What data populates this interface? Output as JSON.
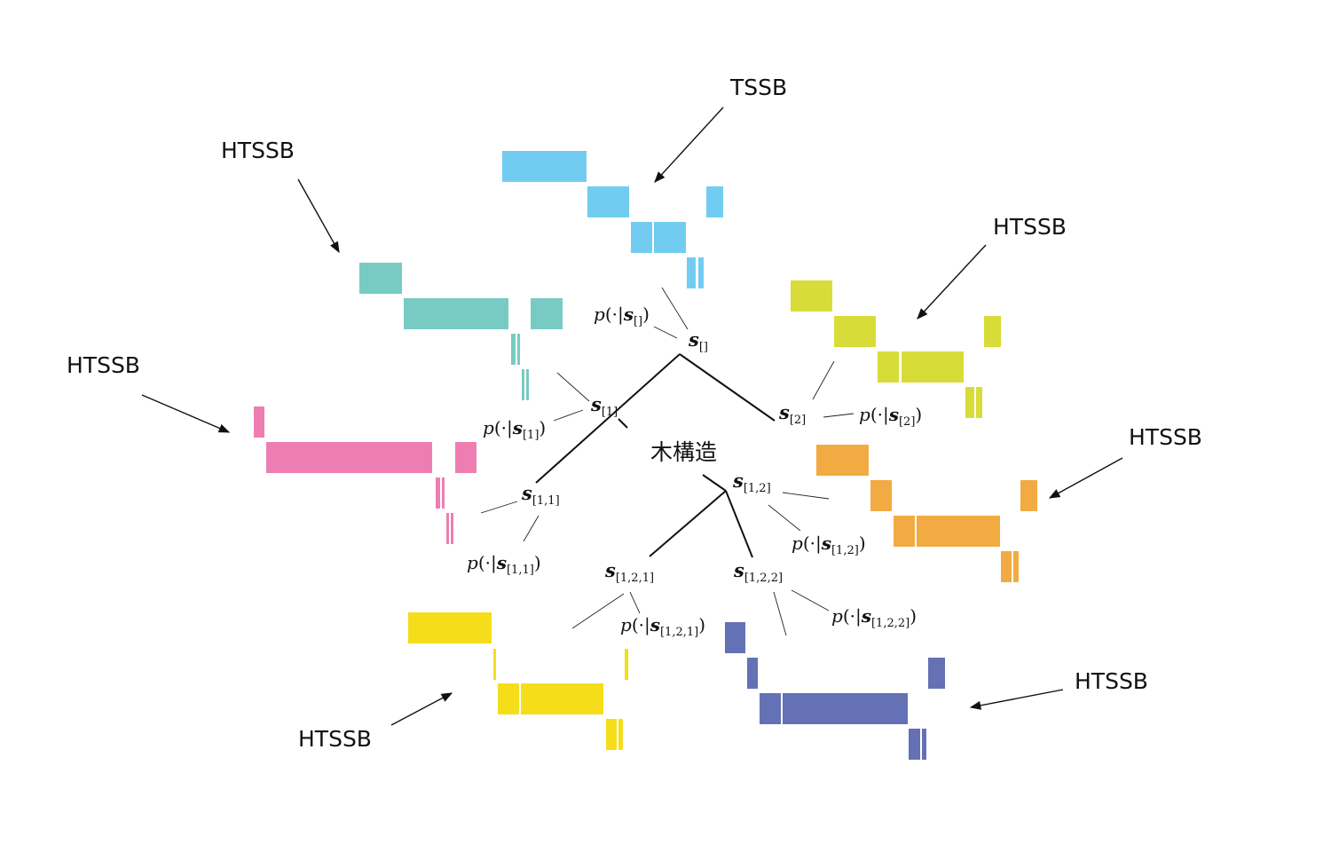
{
  "labels": {
    "tssb": "TSSB",
    "htssb_teal": "HTSSB",
    "htssb_pink": "HTSSB",
    "htssb_lime": "HTSSB",
    "htssb_orange": "HTSSB",
    "htssb_yellow": "HTSSB",
    "htssb_indigo": "HTSSB",
    "tree_structure": "木構造"
  },
  "nodes": [
    {
      "id": "root",
      "subscript": "[]"
    },
    {
      "id": "n1",
      "subscript": "[1]"
    },
    {
      "id": "n2",
      "subscript": "[2]"
    },
    {
      "id": "n11",
      "subscript": "[1,1]"
    },
    {
      "id": "n12",
      "subscript": "[1,2]"
    },
    {
      "id": "n121",
      "subscript": "[1,2,1]"
    },
    {
      "id": "n122",
      "subscript": "[1,2,2]"
    }
  ],
  "distributions": [
    {
      "id": "p-root",
      "subscript": "[]"
    },
    {
      "id": "p-n1",
      "subscript": "[1]"
    },
    {
      "id": "p-n2",
      "subscript": "[2]"
    },
    {
      "id": "p-n11",
      "subscript": "[1,1]"
    },
    {
      "id": "p-n12",
      "subscript": "[1,2]"
    },
    {
      "id": "p-n121",
      "subscript": "[1,2,1]"
    },
    {
      "id": "p-n122",
      "subscript": "[1,2,2]"
    }
  ],
  "colors": {
    "tssb": "#72ccf2",
    "teal": "#78cbc2",
    "pink": "#ee7eb2",
    "lime": "#d8dc38",
    "orange": "#f2ab42",
    "yellow": "#f5dd1a",
    "indigo": "#6571b5"
  }
}
